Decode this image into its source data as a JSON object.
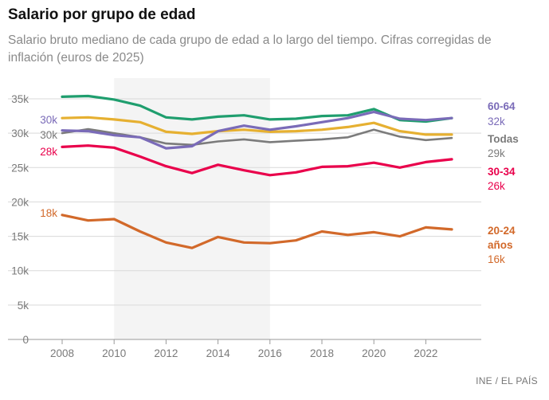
{
  "header": {
    "title": "Salario por grupo de edad",
    "subtitle": "Salario bruto mediano de cada grupo de edad a lo largo del tiempo. Cifras corregidas de inflación (euros de 2025)"
  },
  "source": "INE / EL PAÍS",
  "colors": {
    "60-64": "#7a6bb8",
    "todas": "#7b7b7b",
    "30-34": "#e9004b",
    "20-24": "#d2692a",
    "verde": "#1f9e6e",
    "amarillo": "#e6b031",
    "shade": "#f4f4f4",
    "grid": "#d9d9d9"
  },
  "chart_data": {
    "type": "line",
    "x": [
      2008,
      2009,
      2010,
      2011,
      2012,
      2013,
      2014,
      2015,
      2016,
      2017,
      2018,
      2019,
      2020,
      2021,
      2022,
      2023
    ],
    "xlim": [
      2007.5,
      2023.5
    ],
    "ylim": [
      0,
      35000
    ],
    "x_ticks": [
      {
        "value": 2008,
        "label": "2008"
      },
      {
        "value": 2010,
        "label": "2010"
      },
      {
        "value": 2012,
        "label": "2012"
      },
      {
        "value": 2014,
        "label": "2014"
      },
      {
        "value": 2016,
        "label": "2016"
      },
      {
        "value": 2018,
        "label": "2018"
      },
      {
        "value": 2020,
        "label": "2020"
      },
      {
        "value": 2022,
        "label": "2022"
      }
    ],
    "y_ticks": [
      {
        "value": 0,
        "label": "0"
      },
      {
        "value": 5000,
        "label": "5k"
      },
      {
        "value": 10000,
        "label": "10k"
      },
      {
        "value": 15000,
        "label": "15k"
      },
      {
        "value": 20000,
        "label": "20k"
      },
      {
        "value": 25000,
        "label": "25k"
      },
      {
        "value": 30000,
        "label": "30k"
      },
      {
        "value": 35000,
        "label": "35k"
      }
    ],
    "shaded_range": [
      2010,
      2016
    ],
    "grid": true,
    "series": [
      {
        "key": "verde",
        "color": "#1f9e6e",
        "width": 3.2,
        "values": [
          35300,
          35400,
          34900,
          34000,
          32300,
          32000,
          32400,
          32600,
          32000,
          32100,
          32500,
          32600,
          33500,
          31900,
          31700,
          32200
        ],
        "start_label": "",
        "end_name": [],
        "end_value": ""
      },
      {
        "key": "amarillo",
        "color": "#e6b031",
        "width": 3.2,
        "values": [
          32200,
          32300,
          32000,
          31600,
          30200,
          29900,
          30300,
          30500,
          30200,
          30300,
          30500,
          30900,
          31500,
          30300,
          29800,
          29800
        ],
        "start_label": "",
        "end_name": [],
        "end_value": ""
      },
      {
        "key": "todas",
        "color": "#7b7b7b",
        "width": 2.6,
        "values": [
          30000,
          30600,
          30000,
          29400,
          28500,
          28300,
          28800,
          29100,
          28700,
          28900,
          29100,
          29400,
          30500,
          29500,
          29000,
          29300
        ],
        "start_label": "30k",
        "end_name": [
          "Todas"
        ],
        "end_value": "29k"
      },
      {
        "key": "30-34",
        "color": "#e9004b",
        "width": 3.2,
        "values": [
          28000,
          28200,
          27900,
          26600,
          25200,
          24200,
          25400,
          24600,
          23900,
          24300,
          25100,
          25200,
          25700,
          25000,
          25800,
          26200
        ],
        "start_label": "28k",
        "end_name": [
          "30-34"
        ],
        "end_value": "26k"
      },
      {
        "key": "20-24",
        "color": "#d2692a",
        "width": 3.2,
        "values": [
          18100,
          17300,
          17500,
          15700,
          14100,
          13300,
          14900,
          14100,
          14000,
          14400,
          15700,
          15200,
          15600,
          15000,
          16300,
          16000
        ],
        "start_label": "18k",
        "end_name": [
          "20-24",
          "años"
        ],
        "end_value": "16k"
      },
      {
        "key": "60-64",
        "color": "#7a6bb8",
        "width": 3.2,
        "values": [
          30400,
          30300,
          29700,
          29400,
          27800,
          28100,
          30300,
          31100,
          30500,
          31000,
          31600,
          32200,
          33100,
          32100,
          31900,
          32200
        ],
        "start_label": "30k",
        "end_name": [
          "60-64"
        ],
        "end_value": "32k"
      }
    ]
  }
}
